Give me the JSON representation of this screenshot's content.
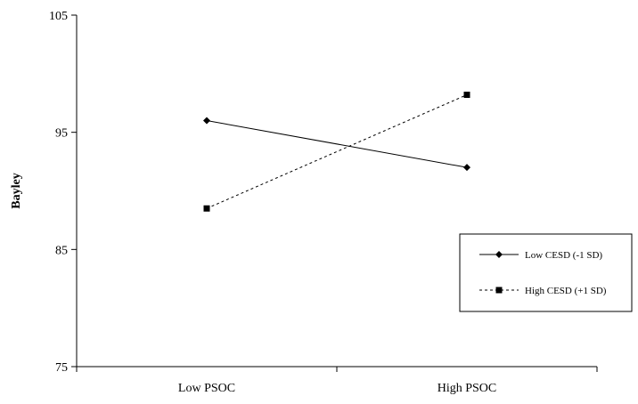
{
  "chart_data": {
    "type": "line",
    "title": "",
    "xlabel": "",
    "ylabel": "Bayley",
    "categories": [
      "Low PSOC",
      "High PSOC"
    ],
    "ylim": [
      75,
      105
    ],
    "yticks": [
      "105",
      "95",
      "85",
      "75"
    ],
    "grid": false,
    "legend_position": "right",
    "series": [
      {
        "name": "Low CESD (-1 SD)",
        "values": [
          96.0,
          92.0
        ],
        "marker": "diamond",
        "line_style": "solid",
        "color": "#000000"
      },
      {
        "name": "High CESD (+1 SD)",
        "values": [
          88.5,
          98.2
        ],
        "marker": "square",
        "line_style": "dotted",
        "color": "#000000"
      }
    ]
  }
}
